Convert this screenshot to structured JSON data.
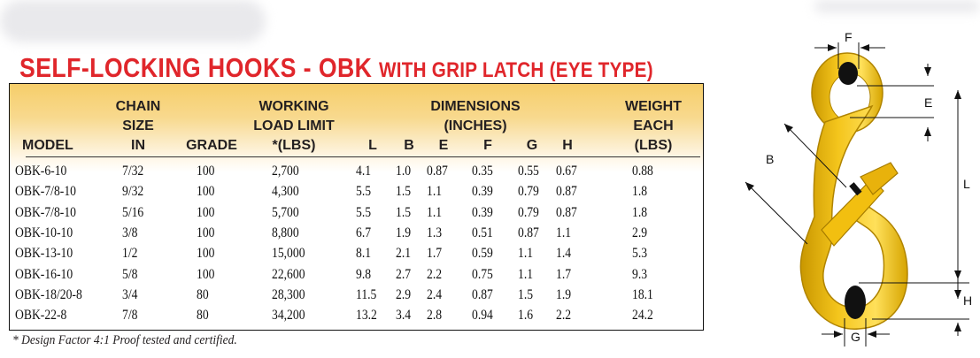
{
  "title": {
    "main": "SELF-LOCKING HOOKS - OBK",
    "sub": "WITH GRIP LATCH (EYE TYPE)"
  },
  "table": {
    "headers": {
      "model": "MODEL",
      "chain": [
        "CHAIN",
        "SIZE",
        "IN"
      ],
      "grade": "GRADE",
      "wll": [
        "WORKING",
        "LOAD LIMIT",
        "*(LBS)"
      ],
      "dimensions": [
        "DIMENSIONS",
        "(INCHES)"
      ],
      "dims": [
        "L",
        "B",
        "E",
        "F",
        "G",
        "H"
      ],
      "weight": [
        "WEIGHT",
        "EACH",
        "(LBS)"
      ]
    },
    "rows": [
      {
        "model": "OBK-6-10",
        "chain": "7/32",
        "grade": "100",
        "wll": "2,700",
        "L": "4.1",
        "B": "1.0",
        "E": "0.87",
        "F": "0.35",
        "G": "0.55",
        "H": "0.67",
        "W": "0.88"
      },
      {
        "model": "OBK-7/8-10",
        "chain": "9/32",
        "grade": "100",
        "wll": "4,300",
        "L": "5.5",
        "B": "1.5",
        "E": "1.1",
        "F": "0.39",
        "G": "0.79",
        "H": "0.87",
        "W": "1.8"
      },
      {
        "model": "OBK-7/8-10",
        "chain": "5/16",
        "grade": "100",
        "wll": "5,700",
        "L": "5.5",
        "B": "1.5",
        "E": "1.1",
        "F": "0.39",
        "G": "0.79",
        "H": "0.87",
        "W": "1.8"
      },
      {
        "model": "OBK-10-10",
        "chain": "3/8",
        "grade": "100",
        "wll": "8,800",
        "L": "6.7",
        "B": "1.9",
        "E": "1.3",
        "F": "0.51",
        "G": "0.87",
        "H": "1.1",
        "W": "2.9"
      },
      {
        "model": "OBK-13-10",
        "chain": "1/2",
        "grade": "100",
        "wll": "15,000",
        "L": "8.1",
        "B": "2.1",
        "E": "1.7",
        "F": "0.59",
        "G": "1.1",
        "H": "1.4",
        "W": "5.3"
      },
      {
        "model": "OBK-16-10",
        "chain": "5/8",
        "grade": "100",
        "wll": "22,600",
        "L": "9.8",
        "B": "2.7",
        "E": "2.2",
        "F": "0.75",
        "G": "1.1",
        "H": "1.7",
        "W": "9.3"
      },
      {
        "model": "OBK-18/20-8",
        "chain": "3/4",
        "grade": "80",
        "wll": "28,300",
        "L": "11.5",
        "B": "2.9",
        "E": "2.4",
        "F": "0.87",
        "G": "1.5",
        "H": "1.9",
        "W": "18.1"
      },
      {
        "model": "OBK-22-8",
        "chain": "7/8",
        "grade": "80",
        "wll": "34,200",
        "L": "13.2",
        "B": "3.4",
        "E": "2.8",
        "F": "0.94",
        "G": "1.6",
        "H": "2.2",
        "W": "24.2"
      }
    ]
  },
  "footnote": "* Design Factor 4:1 Proof tested and certified.",
  "diagram": {
    "labels": {
      "F": "F",
      "E": "E",
      "B": "B",
      "L": "L",
      "H": "H",
      "G": "G"
    },
    "colors": {
      "hook": "#f4c51c",
      "hook_shadow": "#c99700",
      "accent": "#e0262b",
      "header": "#f6ce6a"
    }
  }
}
